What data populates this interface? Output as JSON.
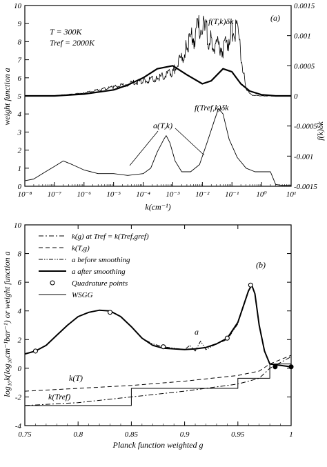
{
  "chart_data": [
    {
      "type": "line",
      "panel_label": "(a)",
      "xlabel": "k(cm⁻¹)",
      "ylabel": "weight function a",
      "y2label": "f(k)δk",
      "x_scale": "log",
      "xlim": [
        1e-08,
        10
      ],
      "ylim": [
        0,
        10
      ],
      "y2lim": [
        -0.0015,
        0.0015
      ],
      "x_ticks": [
        "10⁻⁸",
        "10⁻⁷",
        "10⁻⁶",
        "10⁻⁵",
        "10⁻⁴",
        "10⁻³",
        "10⁻²",
        "10⁻¹",
        "10⁰",
        "10¹"
      ],
      "x_tick_values": [
        1e-08,
        1e-07,
        1e-06,
        1e-05,
        0.0001,
        0.001,
        0.01,
        0.1,
        1,
        10
      ],
      "y_ticks": [
        "0",
        "1",
        "2",
        "3",
        "4",
        "5",
        "6",
        "7",
        "8",
        "9",
        "10"
      ],
      "y_tick_values": [
        0,
        1,
        2,
        3,
        4,
        5,
        6,
        7,
        8,
        9,
        10
      ],
      "y2_ticks": [
        "0.0015",
        "0.001",
        "0.0005",
        "0",
        "-0.0005",
        "-0.001",
        "-0.0015"
      ],
      "y2_tick_values": [
        0.0015,
        0.001,
        0.0005,
        0,
        -0.0005,
        -0.001,
        -0.0015
      ],
      "annotations": {
        "T": "T = 300K",
        "Tref": "Tref = 2000K",
        "fT": "f(T,k)δk",
        "fTref": "f(Tref,k)δk",
        "aT": "a(T,k)"
      },
      "series": [
        {
          "name": "a(T,k)",
          "axis": "left",
          "style": "thin",
          "x": [
            1e-08,
            2e-08,
            5e-08,
            1e-07,
            2e-07,
            4e-07,
            1e-06,
            3e-06,
            1e-05,
            3e-05,
            0.0001,
            0.00018,
            0.0003,
            0.0005,
            0.0006,
            0.0008,
            0.0012,
            0.002,
            0.004,
            0.008,
            0.015,
            0.025,
            0.035,
            0.05,
            0.08,
            0.15,
            0.3,
            0.6,
            1,
            2,
            3,
            5,
            10
          ],
          "y": [
            0.3,
            0.4,
            0.8,
            1.1,
            1.4,
            1.2,
            0.9,
            0.7,
            0.7,
            0.6,
            0.7,
            1.0,
            1.9,
            2.6,
            2.8,
            2.4,
            1.4,
            0.8,
            0.8,
            1.2,
            2.5,
            3.6,
            4.3,
            4.0,
            2.6,
            1.6,
            1.0,
            0.8,
            0.8,
            0.8,
            0.1,
            0.05,
            0.05
          ]
        },
        {
          "name": "f(T,k)δk",
          "axis": "right",
          "style": "noisy",
          "x": [
            1e-08,
            1e-07,
            1e-06,
            1e-05,
            3e-05,
            0.0001,
            0.0003,
            0.001,
            0.003,
            0.007,
            0.01,
            0.02,
            0.05,
            0.1,
            0.15,
            0.2,
            0.3,
            0.5,
            1,
            10
          ],
          "y": [
            0,
            0,
            5e-05,
            0.00015,
            0.0002,
            0.00025,
            0.0003,
            0.0004,
            0.0008,
            0.0011,
            0.00115,
            0.0009,
            0.0008,
            0.00105,
            0.0011,
            0.0007,
            0.0001,
            1e-05,
            0,
            0
          ]
        },
        {
          "name": "f(Tref,k)δk",
          "axis": "right",
          "style": "thick",
          "x": [
            1e-08,
            1e-07,
            1e-06,
            1e-05,
            3e-05,
            0.0001,
            0.0003,
            0.001,
            0.003,
            0.01,
            0.02,
            0.05,
            0.1,
            0.2,
            0.4,
            1,
            3,
            10
          ],
          "y": [
            0,
            0,
            3e-05,
            0.0001,
            0.00018,
            0.0003,
            0.00045,
            0.0005,
            0.00035,
            0.0002,
            0.00025,
            0.00045,
            0.0004,
            0.0002,
            8e-05,
            2e-05,
            0,
            0
          ]
        }
      ]
    },
    {
      "type": "line",
      "panel_label": "(b)",
      "xlabel": "Planck function weighted g",
      "ylabel": "log₁₀k(log₁₀cm⁻¹bar⁻¹) or weight function a",
      "xlim": [
        0.75,
        1
      ],
      "ylim": [
        -4,
        10
      ],
      "x_ticks": [
        "0.75",
        "0.8",
        "0.85",
        "0.9",
        "0.95",
        "1"
      ],
      "x_tick_values": [
        0.75,
        0.8,
        0.85,
        0.9,
        0.95,
        1
      ],
      "y_ticks": [
        "-4",
        "-2",
        "0",
        "2",
        "4",
        "6",
        "8",
        "10"
      ],
      "y_tick_values": [
        -4,
        -2,
        0,
        2,
        4,
        6,
        8,
        10
      ],
      "legend": [
        {
          "label": "k(g) at Tref = k(Tref,gref)",
          "style": "dashdot"
        },
        {
          "label": "k(T,g)",
          "style": "dashed"
        },
        {
          "label": "a before smoothing",
          "style": "dashdotdot"
        },
        {
          "label": "a after smoothing",
          "style": "thick"
        },
        {
          "label": "Quadrature points",
          "style": "circle"
        },
        {
          "label": "WSGG",
          "style": "step"
        }
      ],
      "annotations": {
        "a": "a",
        "kT": "k(T)",
        "kTref": "k(Tref)"
      },
      "series": [
        {
          "name": "a after smoothing",
          "style": "thick",
          "x": [
            0.75,
            0.76,
            0.77,
            0.78,
            0.79,
            0.8,
            0.81,
            0.82,
            0.83,
            0.84,
            0.85,
            0.86,
            0.87,
            0.88,
            0.89,
            0.9,
            0.91,
            0.92,
            0.93,
            0.94,
            0.95,
            0.955,
            0.96,
            0.963,
            0.966,
            0.97,
            0.975,
            0.98,
            1
          ],
          "y": [
            1.0,
            1.2,
            1.6,
            2.3,
            3.0,
            3.6,
            3.9,
            4.05,
            4.0,
            3.6,
            2.9,
            2.1,
            1.6,
            1.4,
            1.35,
            1.3,
            1.35,
            1.45,
            1.7,
            2.1,
            3.2,
            4.3,
            5.4,
            5.8,
            5.2,
            3.0,
            1.2,
            0.3,
            0.1
          ]
        },
        {
          "name": "a before smoothing",
          "style": "dashdotdot",
          "x": [
            0.85,
            0.86,
            0.87,
            0.88,
            0.89,
            0.9,
            0.905,
            0.91,
            0.915,
            0.92,
            0.93,
            0.94,
            0.95
          ],
          "y": [
            2.9,
            2.1,
            1.7,
            1.5,
            1.4,
            1.3,
            1.6,
            1.2,
            1.9,
            1.3,
            1.7,
            2.0,
            3.1
          ]
        },
        {
          "name": "k(T,g)",
          "style": "dashed",
          "x": [
            0.75,
            0.8,
            0.85,
            0.9,
            0.95,
            0.97,
            0.98,
            1
          ],
          "y": [
            -1.6,
            -1.4,
            -1.2,
            -0.9,
            -0.5,
            -0.2,
            0.3,
            0.9
          ]
        },
        {
          "name": "k(g) at Tref = k(Tref,gref)",
          "style": "dashdot",
          "x": [
            0.75,
            0.8,
            0.85,
            0.9,
            0.95,
            0.97,
            0.98,
            1
          ],
          "y": [
            -2.6,
            -2.4,
            -2.0,
            -1.6,
            -1.1,
            -0.7,
            0.0,
            0.8
          ]
        },
        {
          "name": "WSGG",
          "style": "step",
          "x": [
            0.75,
            0.85,
            0.85,
            0.95,
            0.95,
            0.98,
            0.98,
            1
          ],
          "y": [
            -2.6,
            -2.6,
            -1.4,
            -1.4,
            -0.7,
            -0.7,
            0.3,
            0.3
          ]
        },
        {
          "name": "Quadrature points",
          "style": "circle",
          "x": [
            0.76,
            0.83,
            0.88,
            0.94,
            0.962,
            0.985,
            1.0
          ],
          "y": [
            1.2,
            3.9,
            1.5,
            2.1,
            5.8,
            0.1,
            0.1
          ]
        }
      ]
    }
  ]
}
